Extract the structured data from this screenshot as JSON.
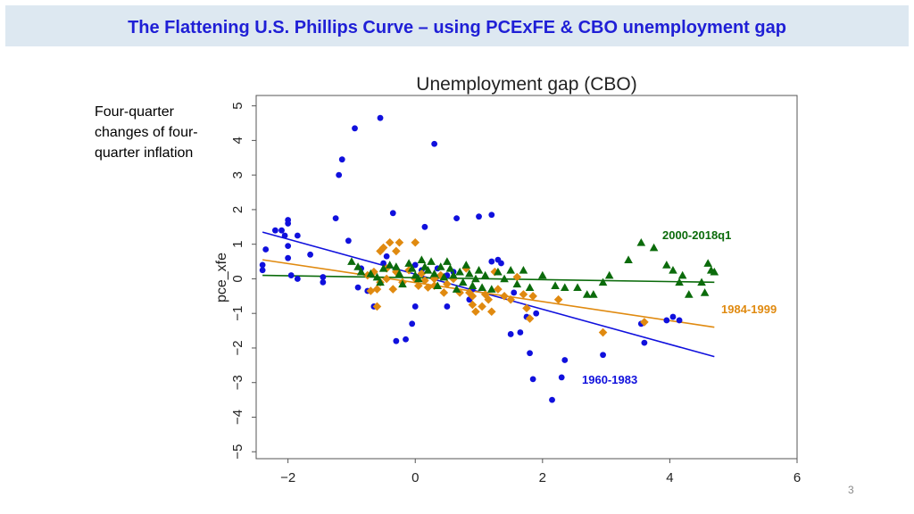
{
  "slide": {
    "title": "The Flattening U.S. Phillips Curve – using PCExFE & CBO unemployment gap",
    "note_lines": [
      "Four-quarter",
      "changes of four-",
      "quarter inflation"
    ],
    "page_number": "3"
  },
  "chart_data": {
    "type": "scatter",
    "title": "Unemployment gap (CBO)",
    "ylabel": "pce_xfe",
    "xlabel": "",
    "xlim": [
      -2.5,
      6
    ],
    "ylim": [
      -5.2,
      5.3
    ],
    "x_ticks": [
      -2,
      0,
      2,
      4,
      6
    ],
    "y_ticks": [
      5,
      4,
      3,
      2,
      1,
      0,
      -1,
      -2,
      -3,
      -4,
      -5
    ],
    "grid": false,
    "series": [
      {
        "name": "1960-1983",
        "color": "#1010dd",
        "marker": "circle",
        "fit_line": [
          [
            -2.4,
            1.35
          ],
          [
            4.7,
            -2.25
          ]
        ],
        "points": [
          [
            -2.4,
            0.25
          ],
          [
            -2.4,
            0.4
          ],
          [
            -2.35,
            0.85
          ],
          [
            -2.2,
            1.4
          ],
          [
            -2.1,
            1.4
          ],
          [
            -2.05,
            1.25
          ],
          [
            -2.0,
            1.6
          ],
          [
            -2.0,
            1.7
          ],
          [
            -2.0,
            0.95
          ],
          [
            -2.0,
            0.6
          ],
          [
            -1.95,
            0.1
          ],
          [
            -1.85,
            1.25
          ],
          [
            -1.85,
            0.0
          ],
          [
            -1.65,
            0.7
          ],
          [
            -1.45,
            0.05
          ],
          [
            -1.45,
            -0.1
          ],
          [
            -1.25,
            1.75
          ],
          [
            -1.2,
            3.0
          ],
          [
            -1.15,
            3.45
          ],
          [
            -1.05,
            1.1
          ],
          [
            -0.95,
            4.35
          ],
          [
            -0.9,
            -0.25
          ],
          [
            -0.85,
            0.3
          ],
          [
            -0.75,
            -0.35
          ],
          [
            -0.65,
            -0.8
          ],
          [
            -0.55,
            4.65
          ],
          [
            -0.5,
            0.45
          ],
          [
            -0.45,
            0.65
          ],
          [
            -0.35,
            1.9
          ],
          [
            -0.3,
            -1.8
          ],
          [
            -0.15,
            -1.75
          ],
          [
            -0.05,
            -1.3
          ],
          [
            0.0,
            0.4
          ],
          [
            0.0,
            -0.8
          ],
          [
            0.1,
            0.25
          ],
          [
            0.15,
            1.5
          ],
          [
            0.3,
            3.9
          ],
          [
            0.35,
            0.3
          ],
          [
            0.5,
            0.1
          ],
          [
            0.5,
            -0.8
          ],
          [
            0.6,
            0.2
          ],
          [
            0.65,
            1.75
          ],
          [
            0.85,
            -0.6
          ],
          [
            0.9,
            -0.3
          ],
          [
            1.0,
            1.8
          ],
          [
            1.2,
            1.85
          ],
          [
            1.2,
            0.5
          ],
          [
            1.3,
            0.55
          ],
          [
            1.35,
            0.45
          ],
          [
            1.5,
            -1.6
          ],
          [
            1.55,
            -0.4
          ],
          [
            1.65,
            -1.55
          ],
          [
            1.75,
            -1.1
          ],
          [
            1.8,
            -2.15
          ],
          [
            1.85,
            -2.9
          ],
          [
            1.9,
            -1.0
          ],
          [
            2.15,
            -3.5
          ],
          [
            2.3,
            -2.85
          ],
          [
            2.35,
            -2.35
          ],
          [
            2.95,
            -2.2
          ],
          [
            3.55,
            -1.3
          ],
          [
            3.6,
            -1.85
          ],
          [
            3.95,
            -1.2
          ],
          [
            4.05,
            -1.1
          ],
          [
            4.15,
            -1.2
          ]
        ]
      },
      {
        "name": "1984-1999",
        "color": "#e08a10",
        "marker": "diamond",
        "fit_line": [
          [
            -2.4,
            0.55
          ],
          [
            4.7,
            -1.4
          ]
        ],
        "points": [
          [
            -0.75,
            0.1
          ],
          [
            -0.7,
            -0.35
          ],
          [
            -0.65,
            0.2
          ],
          [
            -0.6,
            -0.3
          ],
          [
            -0.6,
            -0.8
          ],
          [
            -0.55,
            0.8
          ],
          [
            -0.55,
            -0.1
          ],
          [
            -0.5,
            0.9
          ],
          [
            -0.45,
            0.3
          ],
          [
            -0.45,
            0.0
          ],
          [
            -0.4,
            1.05
          ],
          [
            -0.35,
            -0.3
          ],
          [
            -0.3,
            0.8
          ],
          [
            -0.3,
            0.2
          ],
          [
            -0.25,
            1.05
          ],
          [
            -0.2,
            -0.1
          ],
          [
            -0.1,
            0.25
          ],
          [
            0.0,
            1.05
          ],
          [
            0.0,
            0.0
          ],
          [
            0.05,
            -0.2
          ],
          [
            0.1,
            0.15
          ],
          [
            0.15,
            -0.05
          ],
          [
            0.2,
            -0.25
          ],
          [
            0.3,
            0.0
          ],
          [
            0.3,
            -0.2
          ],
          [
            0.4,
            0.1
          ],
          [
            0.45,
            -0.4
          ],
          [
            0.5,
            -0.15
          ],
          [
            0.6,
            0.0
          ],
          [
            0.7,
            -0.4
          ],
          [
            0.8,
            0.3
          ],
          [
            0.85,
            -0.4
          ],
          [
            0.9,
            -0.5
          ],
          [
            0.9,
            -0.75
          ],
          [
            0.95,
            -0.95
          ],
          [
            1.05,
            -0.8
          ],
          [
            1.1,
            -0.45
          ],
          [
            1.15,
            -0.6
          ],
          [
            1.2,
            -0.95
          ],
          [
            1.25,
            0.2
          ],
          [
            1.3,
            -0.3
          ],
          [
            1.4,
            -0.5
          ],
          [
            1.5,
            -0.6
          ],
          [
            1.6,
            0.05
          ],
          [
            1.7,
            -0.45
          ],
          [
            1.75,
            -0.85
          ],
          [
            1.8,
            -1.15
          ],
          [
            1.85,
            -0.5
          ],
          [
            2.25,
            -0.6
          ],
          [
            2.95,
            -1.55
          ],
          [
            3.6,
            -1.25
          ]
        ]
      },
      {
        "name": "2000-2018q1",
        "color": "#0b6b0b",
        "marker": "triangle",
        "fit_line": [
          [
            -2.4,
            0.1
          ],
          [
            4.7,
            -0.1
          ]
        ],
        "points": [
          [
            -1.0,
            0.5
          ],
          [
            -0.9,
            0.35
          ],
          [
            -0.85,
            0.2
          ],
          [
            -0.7,
            0.15
          ],
          [
            -0.6,
            0.05
          ],
          [
            -0.55,
            -0.1
          ],
          [
            -0.5,
            0.3
          ],
          [
            -0.4,
            0.4
          ],
          [
            -0.3,
            0.35
          ],
          [
            -0.25,
            0.15
          ],
          [
            -0.2,
            -0.15
          ],
          [
            -0.1,
            0.45
          ],
          [
            -0.05,
            0.3
          ],
          [
            0.0,
            0.1
          ],
          [
            0.05,
            0.0
          ],
          [
            0.1,
            0.55
          ],
          [
            0.15,
            0.35
          ],
          [
            0.2,
            0.25
          ],
          [
            0.25,
            0.5
          ],
          [
            0.3,
            0.15
          ],
          [
            0.35,
            -0.2
          ],
          [
            0.4,
            0.35
          ],
          [
            0.45,
            0.05
          ],
          [
            0.5,
            0.5
          ],
          [
            0.55,
            0.3
          ],
          [
            0.6,
            0.1
          ],
          [
            0.65,
            -0.3
          ],
          [
            0.7,
            0.2
          ],
          [
            0.75,
            -0.1
          ],
          [
            0.8,
            0.4
          ],
          [
            0.85,
            0.15
          ],
          [
            0.9,
            -0.2
          ],
          [
            0.95,
            0.0
          ],
          [
            1.0,
            0.25
          ],
          [
            1.05,
            -0.25
          ],
          [
            1.1,
            0.1
          ],
          [
            1.2,
            -0.3
          ],
          [
            1.3,
            0.2
          ],
          [
            1.4,
            0.0
          ],
          [
            1.5,
            0.25
          ],
          [
            1.6,
            -0.15
          ],
          [
            1.7,
            0.25
          ],
          [
            1.8,
            -0.25
          ],
          [
            2.0,
            0.1
          ],
          [
            2.2,
            -0.2
          ],
          [
            2.35,
            -0.25
          ],
          [
            2.55,
            -0.25
          ],
          [
            2.7,
            -0.45
          ],
          [
            2.8,
            -0.45
          ],
          [
            2.95,
            -0.1
          ],
          [
            3.05,
            0.1
          ],
          [
            3.35,
            0.55
          ],
          [
            3.55,
            1.05
          ],
          [
            3.75,
            0.9
          ],
          [
            3.95,
            0.4
          ],
          [
            4.05,
            0.25
          ],
          [
            4.15,
            -0.1
          ],
          [
            4.2,
            0.1
          ],
          [
            4.3,
            -0.45
          ],
          [
            4.5,
            -0.1
          ],
          [
            4.55,
            -0.4
          ],
          [
            4.6,
            0.45
          ],
          [
            4.65,
            0.25
          ],
          [
            4.7,
            0.2
          ]
        ]
      }
    ],
    "period_labels": [
      {
        "text": "2000-2018q1",
        "color": "#0b6b0b"
      },
      {
        "text": "1984-1999",
        "color": "#e08a10"
      },
      {
        "text": "1960-1983",
        "color": "#1010dd"
      }
    ]
  }
}
